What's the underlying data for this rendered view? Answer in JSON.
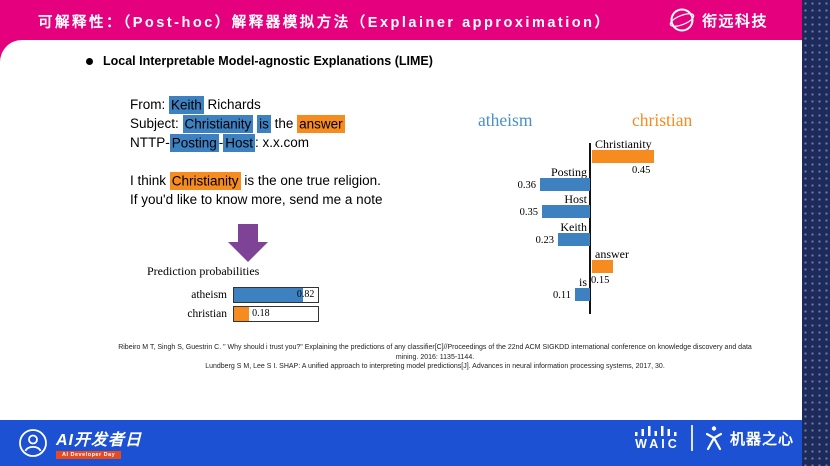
{
  "header": {
    "title": "可解释性：（Post-hoc）解释器模拟方法（Explainer approximation）",
    "brand": "衔远科技"
  },
  "main": {
    "bullet": "Local Interpretable Model-agnostic Explanations (LIME)"
  },
  "email": {
    "lines": [
      [
        {
          "t": "From: "
        },
        {
          "t": "Keith",
          "h": "blue"
        },
        {
          "t": " Richards"
        }
      ],
      [
        {
          "t": "Subject: "
        },
        {
          "t": "Christianity",
          "h": "blue"
        },
        {
          "t": " "
        },
        {
          "t": "is",
          "h": "blue"
        },
        {
          "t": " the "
        },
        {
          "t": "answer",
          "h": "orange"
        }
      ],
      [
        {
          "t": "NTTP-"
        },
        {
          "t": "Posting",
          "h": "blue"
        },
        {
          "t": "-"
        },
        {
          "t": "Host",
          "h": "blue"
        },
        {
          "t": ": x.x.com"
        }
      ],
      [],
      [
        {
          "t": "I think "
        },
        {
          "t": "Christianity",
          "h": "orange"
        },
        {
          "t": " is the one true religion."
        }
      ],
      [
        {
          "t": "If you'd like to know more, send me a note"
        }
      ]
    ]
  },
  "chart_data": [
    {
      "type": "bar",
      "title": "Prediction probabilities",
      "orientation": "horizontal",
      "categories": [
        "atheism",
        "christian"
      ],
      "values": [
        0.82,
        0.18
      ],
      "xlim": [
        0,
        1
      ],
      "colors": [
        "#3E81C1",
        "#F68B1F"
      ]
    },
    {
      "type": "bar",
      "title": "LIME word contributions",
      "orientation": "horizontal-diverging",
      "legend": [
        {
          "label": "atheism",
          "color": "#4A90C8",
          "direction": "left"
        },
        {
          "label": "christian",
          "color": "#F68B1F",
          "direction": "right"
        }
      ],
      "features": [
        {
          "word": "Christianity",
          "weight": 0.45,
          "class": "christian"
        },
        {
          "word": "Posting",
          "weight": 0.36,
          "class": "atheism"
        },
        {
          "word": "Host",
          "weight": 0.35,
          "class": "atheism"
        },
        {
          "word": "Keith",
          "weight": 0.23,
          "class": "atheism"
        },
        {
          "word": "answer",
          "weight": 0.15,
          "class": "christian"
        },
        {
          "word": "is",
          "weight": 0.11,
          "class": "atheism"
        }
      ]
    }
  ],
  "references": [
    "Ribeiro M T, Singh S, Guestrin C. \" Why should i trust you?\" Explaining the predictions of any classifier[C]//Proceedings of the 22nd ACM SIGKDD international conference on knowledge discovery and data mining. 2016: 1135-1144.",
    "Lundberg S M, Lee S I. SHAP: A unified approach to interpreting model predictions[J]. Advances in neural information processing systems, 2017, 30."
  ],
  "footer": {
    "left_title": "AI开发者日",
    "left_badge": "AI Developer Day",
    "waic": "WAIC",
    "right_brand": "机器之心"
  },
  "colors": {
    "header_pink": "#E5017D",
    "footer_blue": "#1C51D4",
    "strip_navy": "#1D2A5C",
    "highlight_blue": "#3E81C1",
    "highlight_orange": "#F68B1F",
    "chart_blue_label": "#4A90C8",
    "arrow_purple": "#7E4397",
    "badge_orange": "#E8491F"
  }
}
